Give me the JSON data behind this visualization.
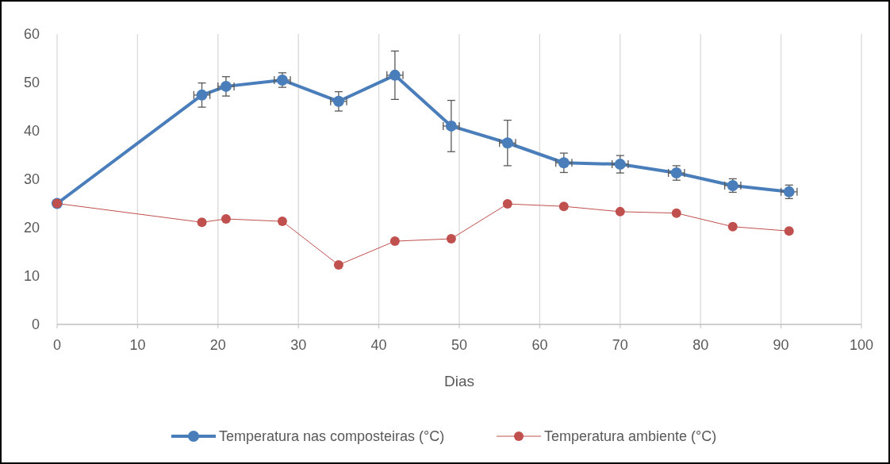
{
  "chart_data": {
    "type": "line",
    "xlabel": "Dias",
    "xlim": [
      0,
      100
    ],
    "xticks": [
      0,
      10,
      20,
      30,
      40,
      50,
      60,
      70,
      80,
      90,
      100
    ],
    "ylim": [
      0,
      60
    ],
    "yticks": [
      0,
      10,
      20,
      30,
      40,
      50,
      60
    ],
    "grid": "x",
    "legend": "bottom",
    "marker": "circle",
    "line_style": "solid",
    "x": [
      0,
      18,
      21,
      28,
      35,
      42,
      49,
      56,
      63,
      70,
      77,
      84,
      91
    ],
    "series": [
      {
        "name": "Temperatura nas composteiras (°C)",
        "color": "#4a7ebb",
        "values": [
          25,
          47.4,
          49.2,
          50.5,
          46.1,
          51.5,
          41.0,
          37.5,
          33.4,
          33.1,
          31.3,
          28.7,
          27.4
        ],
        "errors": [
          null,
          2.5,
          2,
          1.5,
          2,
          5,
          5.3,
          4.7,
          2,
          1.8,
          1.5,
          1.4,
          1.4
        ],
        "xerrors": [
          null,
          1,
          1,
          1,
          1,
          1,
          1,
          1,
          1,
          1,
          1,
          1,
          1
        ]
      },
      {
        "name": "Temperatura ambiente (°C)",
        "color": "#c0504d",
        "values": [
          25,
          21.1,
          21.8,
          21.3,
          12.3,
          17.2,
          17.7,
          24.9,
          24.4,
          23.3,
          23.0,
          20.2,
          19.3
        ]
      }
    ]
  }
}
